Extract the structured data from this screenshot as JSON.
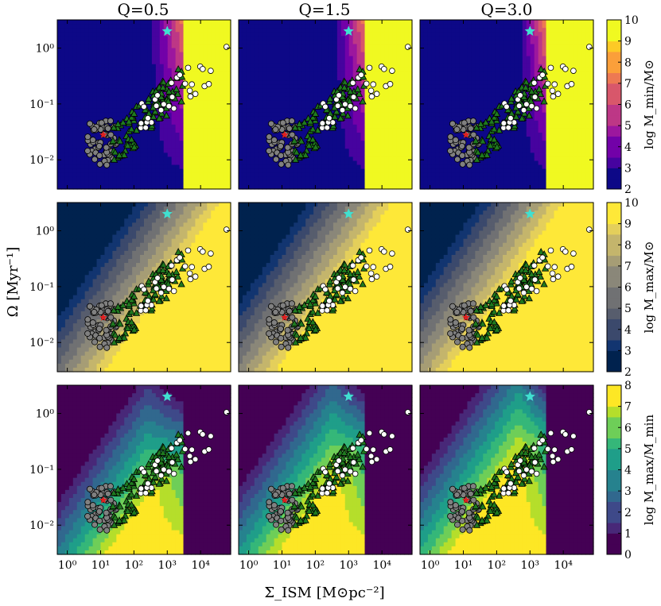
{
  "figure": {
    "ylabel": "Ω [Myr⁻¹]",
    "xlabel": "Σ_ISM [M⊙pc⁻²]",
    "column_titles": [
      "Q=0.5",
      "Q=1.5",
      "Q=3.0"
    ]
  },
  "colorbars": [
    {
      "label": "log M_min/M⊙",
      "ticks": [
        "2",
        "3",
        "4",
        "5",
        "6",
        "7",
        "8",
        "9",
        "10"
      ],
      "range": [
        2,
        10
      ],
      "colormap": "plasma"
    },
    {
      "label": "log M_max/M⊙",
      "ticks": [
        "2",
        "3",
        "4",
        "5",
        "6",
        "7",
        "8",
        "9",
        "10"
      ],
      "range": [
        2,
        10
      ],
      "colormap": "cividis"
    },
    {
      "label": "log M_max/M_min",
      "ticks": [
        "0",
        "1",
        "2",
        "3",
        "4",
        "5",
        "6",
        "7",
        "8"
      ],
      "range": [
        0,
        8
      ],
      "colormap": "viridis"
    }
  ],
  "axes": {
    "x_ticks": [
      "10⁰",
      "10¹",
      "10²",
      "10³",
      "10⁴"
    ],
    "y_ticks": [
      "10⁰",
      "10⁻¹",
      "10⁻²"
    ],
    "x_scale": "log",
    "y_scale": "log",
    "xlim": [
      0.5,
      80000
    ],
    "ylim": [
      0.003,
      3.2
    ]
  },
  "chart_data": {
    "type": "heatmap",
    "grid": "3x3 panels; rows = M_min, M_max, M_max/M_min; columns = Q values",
    "markers": {
      "gray_circles": {
        "color": "#808080",
        "x_range": [
          4,
          30
        ],
        "y_range": [
          0.008,
          0.05
        ]
      },
      "green_triangles": {
        "color": "#1f7a1f",
        "x_range": [
          20,
          3000
        ],
        "y_range": [
          0.012,
          0.35
        ]
      },
      "white_circles": {
        "color": "#ffffff",
        "x_range": [
          100,
          60000
        ],
        "y_range": [
          0.05,
          1.1
        ]
      },
      "cyan_star": {
        "color": "#40e0d0",
        "x": 1000,
        "y": 2.0
      },
      "red_star": {
        "color": "#e02020",
        "x": 12,
        "y": 0.028
      }
    }
  }
}
